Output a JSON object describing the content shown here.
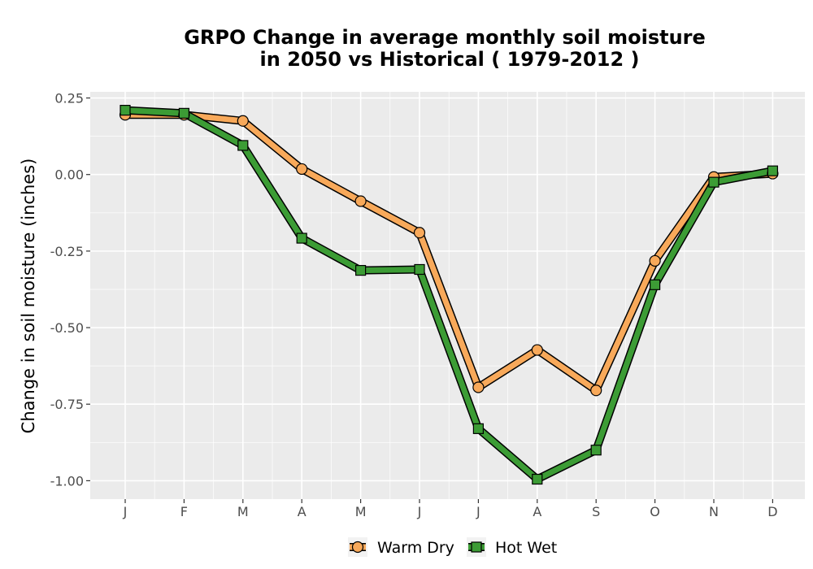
{
  "chart_data": {
    "type": "line",
    "title_line1": "GRPO  Change in average monthly soil moisture",
    "title_line2": "in 2050 vs Historical ( 1979-2012 )",
    "xlabel": "",
    "ylabel": "Change in soil moisture (inches)",
    "categories": [
      "J",
      "F",
      "M",
      "A",
      "M",
      "J",
      "J",
      "A",
      "S",
      "O",
      "N",
      "D"
    ],
    "ylim": [
      -1.06,
      0.27
    ],
    "yticks": [
      0.25,
      0.0,
      -0.25,
      -0.5,
      -0.75,
      -1.0
    ],
    "ytick_labels": [
      "0.25",
      "0.00",
      "-0.25",
      "-0.50",
      "-0.75",
      "-1.00"
    ],
    "grid": true,
    "legend_position": "bottom",
    "series": [
      {
        "name": "Warm Dry",
        "color": "#f8a95a",
        "marker": "circle",
        "values": [
          0.195,
          0.195,
          0.175,
          0.018,
          -0.087,
          -0.19,
          -0.695,
          -0.573,
          -0.705,
          -0.282,
          -0.008,
          0.003
        ]
      },
      {
        "name": "Hot Wet",
        "color": "#3c9c35",
        "marker": "square",
        "values": [
          0.21,
          0.2,
          0.095,
          -0.208,
          -0.313,
          -0.31,
          -0.83,
          -0.995,
          -0.9,
          -0.36,
          -0.025,
          0.012
        ]
      }
    ]
  }
}
